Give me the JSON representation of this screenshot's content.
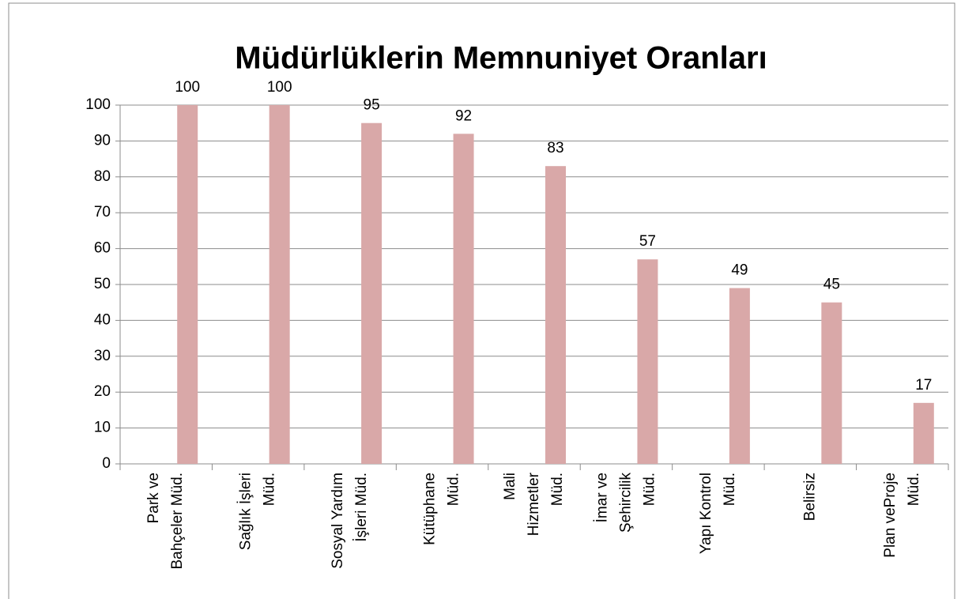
{
  "chart_data": {
    "type": "bar",
    "title": "Müdürlüklerin Memnuniyet Oranları",
    "categories": [
      "Park ve Bahçeler Müd.",
      "Sağlık İşleri Müd.",
      "Sosyal Yardım İşleri Müd.",
      "Kütüphane Müd.",
      "Mali Hizmetler Müd.",
      "İmar ve Şehircilik Müd.",
      "Yapı Kontrol Müd.",
      "Belirsiz",
      "Plan veProje Müd."
    ],
    "values": [
      100,
      100,
      95,
      92,
      83,
      57,
      49,
      45,
      17
    ],
    "color": "#d9a8a8",
    "ylim": [
      0,
      100
    ],
    "yticks": [
      0,
      10,
      20,
      30,
      40,
      50,
      60,
      70,
      80,
      90,
      100
    ],
    "grid": true
  }
}
